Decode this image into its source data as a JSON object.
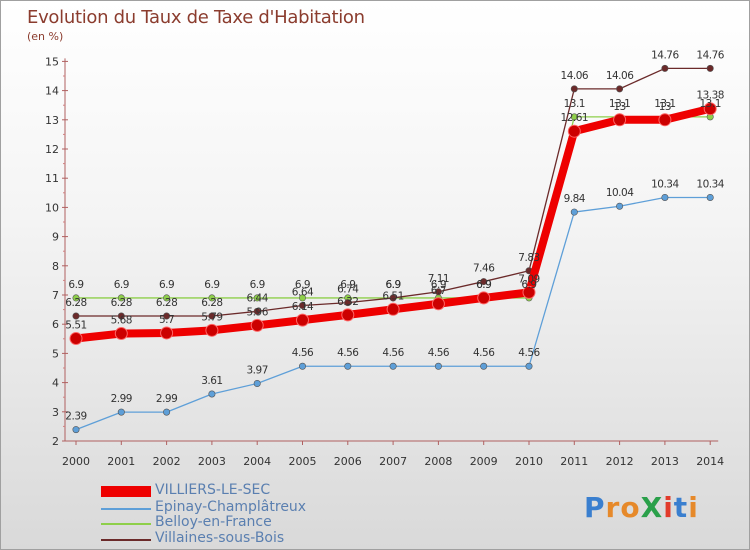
{
  "header": {
    "title": "Evolution du Taux de Taxe d'Habitation",
    "unit": "(en %)"
  },
  "logo": {
    "text": "ProXiti",
    "letters": [
      "P",
      "r",
      "o",
      "X",
      "i",
      "t",
      "i"
    ],
    "colors": [
      "#3a7fcf",
      "#e6892a",
      "#e6892a",
      "#2aa04a",
      "#e23b2b",
      "#3a7fcf",
      "#e6892a"
    ]
  },
  "chart_data": {
    "type": "line",
    "categories": [
      "2000",
      "2001",
      "2002",
      "2003",
      "2004",
      "2005",
      "2006",
      "2007",
      "2008",
      "2009",
      "2010",
      "2011",
      "2012",
      "2013",
      "2014"
    ],
    "ylim": [
      2,
      15
    ],
    "yticks": [
      2,
      3,
      4,
      5,
      6,
      7,
      8,
      9,
      10,
      11,
      12,
      13,
      14,
      15
    ],
    "grid": false,
    "legend_position": "bottom-left",
    "series": [
      {
        "name": "VILLIERS-LE-SEC",
        "color": "#ee0000",
        "values": [
          5.51,
          5.68,
          5.7,
          5.79,
          5.96,
          6.14,
          6.32,
          6.51,
          6.7,
          6.9,
          7.09,
          12.61,
          13,
          13,
          13.38
        ],
        "labels": [
          "5.51",
          "5.68",
          "5.7",
          "5.79",
          "5.96",
          "6.14",
          "6.32",
          "6.51",
          "6.7",
          "6.9",
          "7.09",
          "12.61",
          "13",
          "13",
          "13.38"
        ]
      },
      {
        "name": "Epinay-Champlâtreux",
        "color": "#5e9fd8",
        "values": [
          2.39,
          2.99,
          2.99,
          3.61,
          3.97,
          4.56,
          4.56,
          4.56,
          4.56,
          4.56,
          4.56,
          9.84,
          10.04,
          10.34,
          10.34
        ],
        "labels": [
          "2.39",
          "2.99",
          "2.99",
          "3.61",
          "3.97",
          "4.56",
          "4.56",
          "4.56",
          "4.56",
          "4.56",
          "4.56",
          "9.84",
          "10.04",
          "10.34",
          "10.34"
        ]
      },
      {
        "name": "Belloy-en-France",
        "color": "#8ecf4a",
        "values": [
          6.9,
          6.9,
          6.9,
          6.9,
          6.9,
          6.9,
          6.9,
          6.9,
          6.9,
          6.9,
          6.9,
          13.1,
          13.1,
          13.1,
          13.1
        ],
        "labels": [
          "6.9",
          "6.9",
          "6.9",
          "6.9",
          "6.9",
          "6.9",
          "6.9",
          "6.9",
          "6.9",
          "6.9",
          "6.9",
          "13.1",
          "13.1",
          "13.1",
          "13.1"
        ]
      },
      {
        "name": "Villaines-sous-Bois",
        "color": "#6b2a2a",
        "values": [
          6.28,
          6.28,
          6.28,
          6.28,
          6.44,
          6.64,
          6.74,
          6.9,
          7.11,
          7.46,
          7.83,
          14.06,
          14.06,
          14.76,
          14.76
        ],
        "labels": [
          "6.28",
          "6.28",
          "6.28",
          "6.28",
          "6.44",
          "6.64",
          "6.74",
          "6.9",
          "7.11",
          "7.46",
          "7.83",
          "14.06",
          "14.06",
          "14.76",
          "14.76"
        ]
      }
    ]
  }
}
